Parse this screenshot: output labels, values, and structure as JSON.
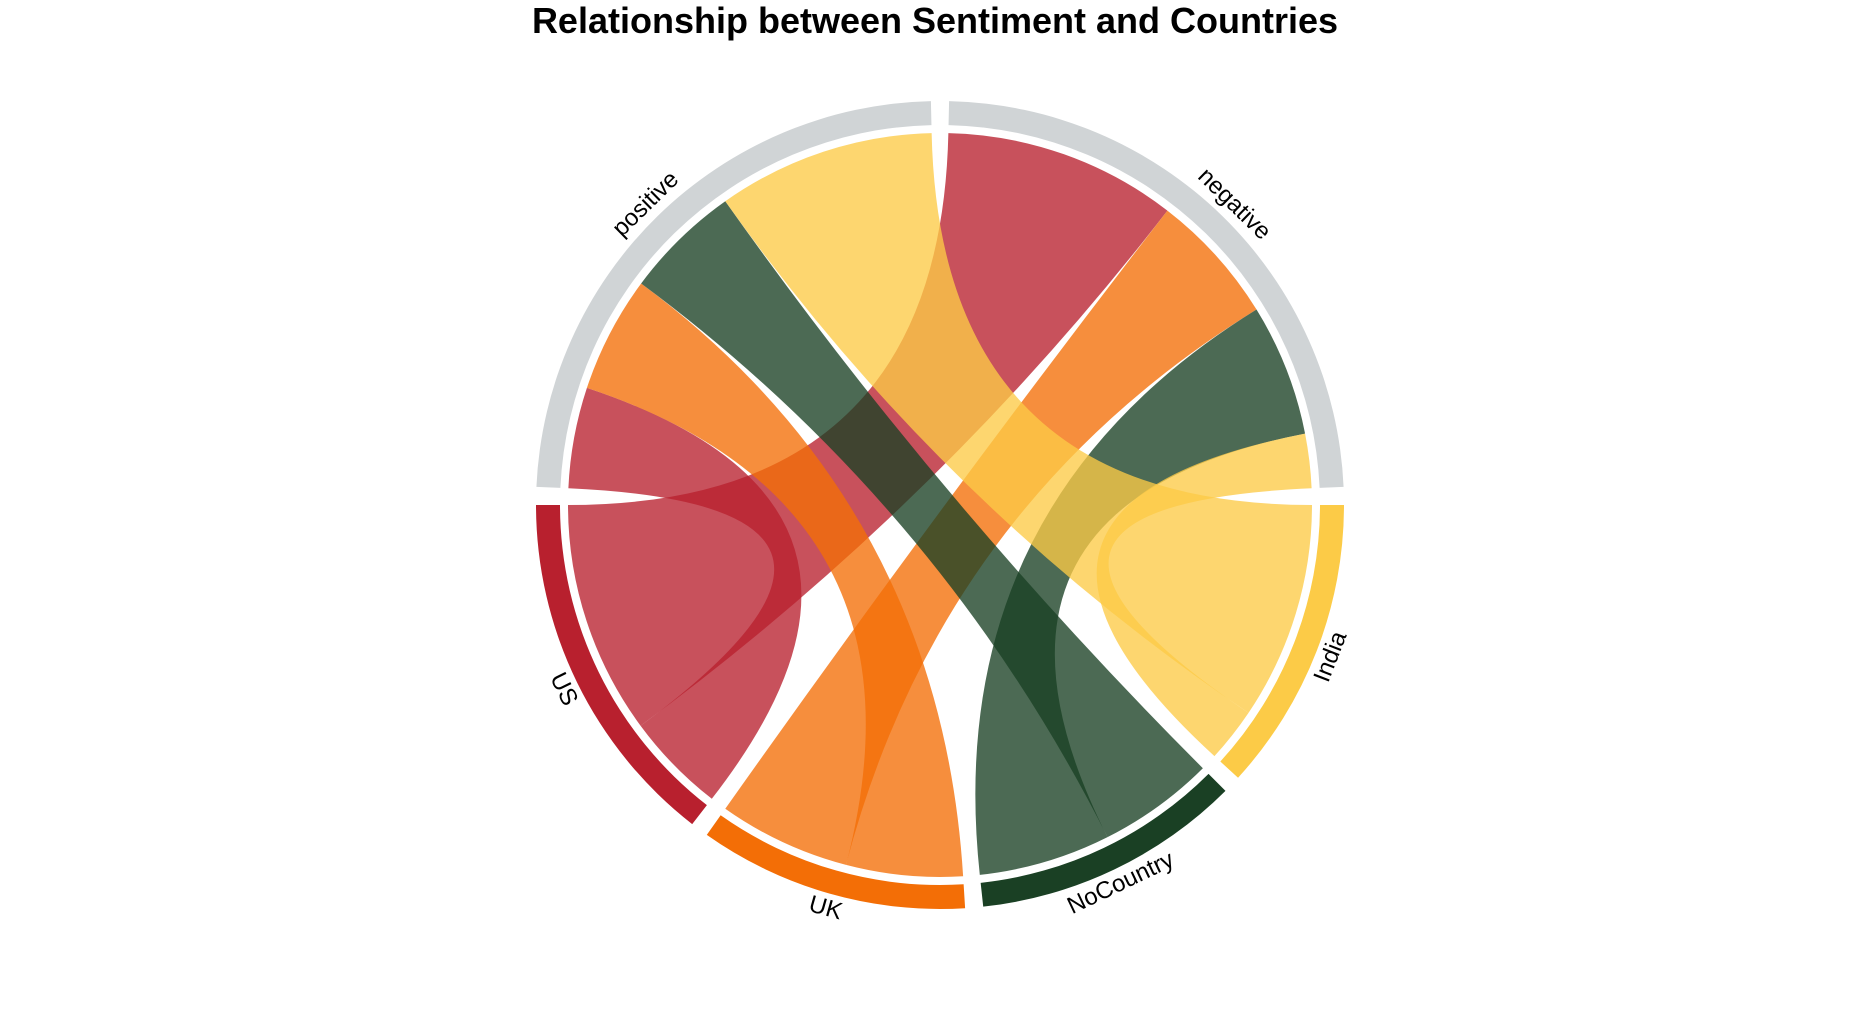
{
  "chart_data": {
    "type": "chord",
    "title": "Relationship between Sentiment and Countries",
    "sectors": [
      {
        "name": "US",
        "group": "country",
        "color": "#B8202E"
      },
      {
        "name": "UK",
        "group": "country",
        "color": "#F36E06"
      },
      {
        "name": "NoCountry",
        "group": "country",
        "color": "#1A4024"
      },
      {
        "name": "India",
        "group": "country",
        "color": "#FCCB47"
      },
      {
        "name": "negative",
        "group": "sentiment",
        "color": "#D0D4D6"
      },
      {
        "name": "positive",
        "group": "sentiment",
        "color": "#D0D4D6"
      }
    ],
    "links": [
      {
        "from": "US",
        "to": "negative",
        "value": 30
      },
      {
        "from": "US",
        "to": "positive",
        "value": 13
      },
      {
        "from": "UK",
        "to": "negative",
        "value": 17
      },
      {
        "from": "UK",
        "to": "positive",
        "value": 15
      },
      {
        "from": "NoCountry",
        "to": "negative",
        "value": 17
      },
      {
        "from": "NoCountry",
        "to": "positive",
        "value": 15
      },
      {
        "from": "India",
        "to": "negative",
        "value": 7
      },
      {
        "from": "India",
        "to": "positive",
        "value": 28
      }
    ]
  }
}
